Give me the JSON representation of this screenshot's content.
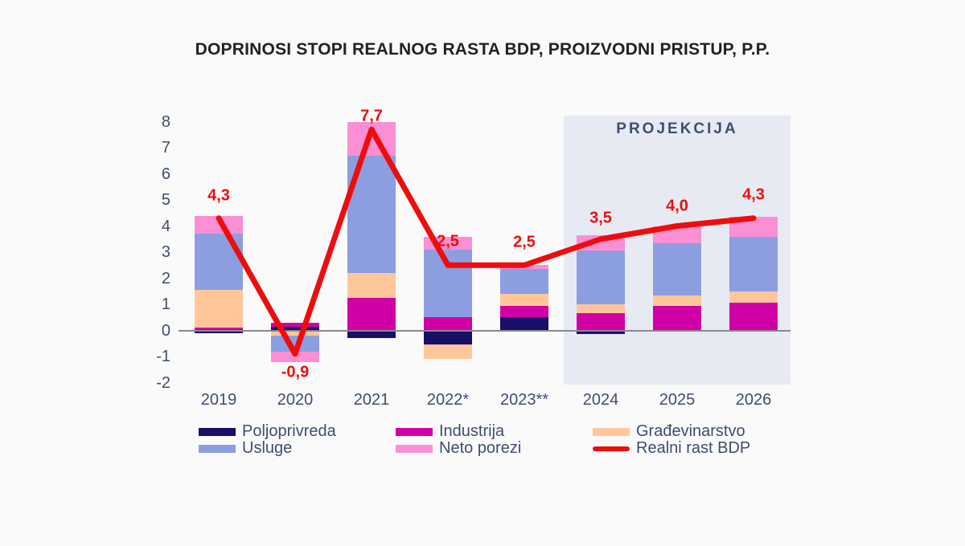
{
  "title": "DOPRINOSI STOPI REALNOG RASTA BDP, PROIZVODNI PRISTUP, P.P.",
  "projection_label": "PROJEKCIJA",
  "colors": {
    "poljoprivreda": "#190e68",
    "industrija": "#d100a6",
    "gradjevinarstvo": "#ffc69c",
    "usluge": "#8c9ee0",
    "neto_porezi": "#fa8fd3",
    "line": "#ee0d0d",
    "projection_band": "#e7eaf3",
    "axis_text": "#3e4e6f",
    "zero_line": "#8a8a8a",
    "background": "#fafafa"
  },
  "chart_data": {
    "type": "bar",
    "subtype": "stacked-bars-with-line",
    "title": "DOPRINOSI STOPI REALNOG RASTA BDP, PROIZVODNI PRISTUP, P.P.",
    "categories": [
      "2019",
      "2020",
      "2021",
      "2022*",
      "2023**",
      "2024",
      "2025",
      "2026"
    ],
    "series": [
      {
        "name": "Poljoprivreda",
        "color_key": "poljoprivreda",
        "values": [
          -0.1,
          0.15,
          -0.3,
          -0.55,
          0.5,
          -0.15,
          0,
          -0.05
        ]
      },
      {
        "name": "Industrija",
        "color_key": "industrija",
        "values": [
          0.1,
          0.15,
          1.25,
          0.5,
          0.45,
          0.65,
          0.95,
          1.05
        ]
      },
      {
        "name": "Građevinarstvo",
        "color_key": "gradjevinarstvo",
        "values": [
          1.45,
          -0.2,
          0.95,
          -0.55,
          0.45,
          0.35,
          0.4,
          0.45
        ]
      },
      {
        "name": "Usluge",
        "color_key": "usluge",
        "values": [
          2.15,
          -0.6,
          4.5,
          2.6,
          0.95,
          2.05,
          2.0,
          2.1
        ]
      },
      {
        "name": "Neto porezi",
        "color_key": "neto_porezi",
        "values": [
          0.7,
          -0.4,
          1.3,
          0.5,
          0.15,
          0.6,
          0.65,
          0.75
        ]
      }
    ],
    "line": {
      "name": "Realni rast BDP",
      "values": [
        4.3,
        -0.9,
        7.7,
        2.5,
        2.5,
        3.5,
        4.0,
        4.3
      ],
      "labels": [
        "4,3",
        "-0,9",
        "7,7",
        "2,5",
        "2,5",
        "3,5",
        "4,0",
        "4,3"
      ]
    },
    "ylim": [
      -2,
      8
    ],
    "yticks": [
      8,
      7,
      6,
      5,
      4,
      3,
      2,
      1,
      0,
      -1,
      -2
    ],
    "grid": false,
    "legend_position": "bottom",
    "projection_band_categories": [
      "2024",
      "2025",
      "2026"
    ]
  },
  "legend": {
    "items": [
      {
        "label": "Poljoprivreda",
        "color_key": "poljoprivreda",
        "kind": "box"
      },
      {
        "label": "Industrija",
        "color_key": "industrija",
        "kind": "box"
      },
      {
        "label": "Građevinarstvo",
        "color_key": "gradjevinarstvo",
        "kind": "box"
      },
      {
        "label": "Usluge",
        "color_key": "usluge",
        "kind": "box"
      },
      {
        "label": "Neto porezi",
        "color_key": "neto_porezi",
        "kind": "box"
      },
      {
        "label": "Realni rast BDP",
        "color_key": "line",
        "kind": "line"
      }
    ]
  }
}
